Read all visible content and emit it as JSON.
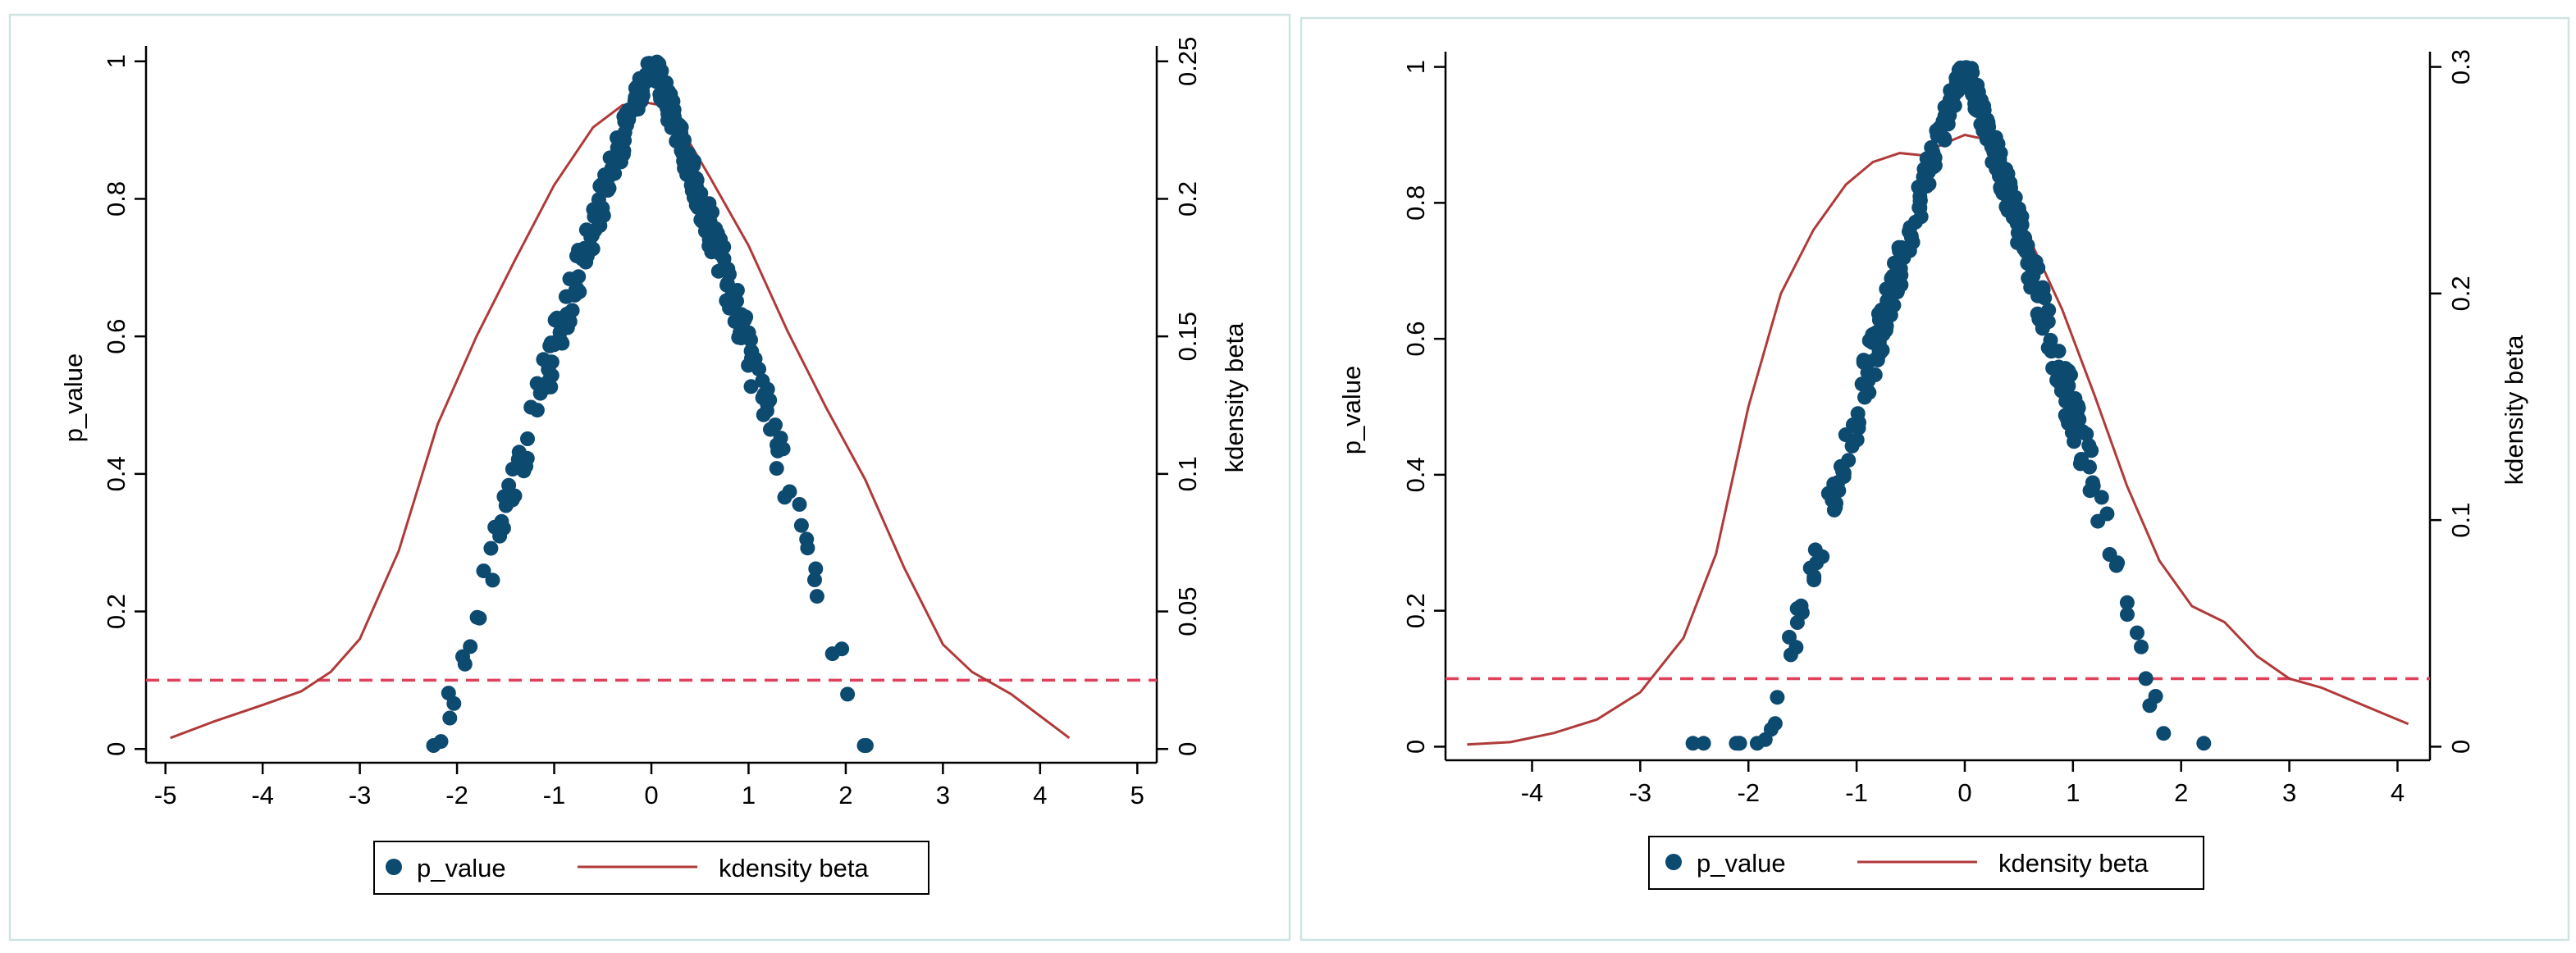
{
  "colors": {
    "points": "#0d4a70",
    "density": "#b03a3a",
    "refline": "#e0405a"
  },
  "chart_data": [
    {
      "type": "scatter",
      "title": "",
      "xlabel": "",
      "ylabel": "p_value",
      "y2label": "kdensity beta",
      "xlim": [
        -5.2,
        5.2
      ],
      "ylim": [
        -0.02,
        1.02
      ],
      "y2lim": [
        -0.005,
        0.255
      ],
      "xticks": [
        "-5",
        "-4",
        "-3",
        "-2",
        "-1",
        "0",
        "1",
        "2",
        "3",
        "4",
        "5"
      ],
      "yticks": [
        "0",
        "0.2",
        "0.4",
        "0.6",
        "0.8",
        "1"
      ],
      "y2ticks": [
        "0",
        "0.05",
        "0.1",
        "0.15",
        "0.2",
        "0.25"
      ],
      "refline_y": 0.1,
      "legend": [
        "p_value",
        "kdensity beta"
      ],
      "sample": {
        "n": 360,
        "seed": 11,
        "left_scale": 2.2,
        "right_scale": 2.2
      },
      "density_series": {
        "x": [
          -4.95,
          -4.5,
          -4.0,
          -3.6,
          -3.3,
          -3.0,
          -2.6,
          -2.2,
          -1.8,
          -1.4,
          -1.0,
          -0.6,
          -0.3,
          -0.05,
          0.1,
          0.3,
          0.6,
          1.0,
          1.4,
          1.8,
          2.2,
          2.6,
          3.0,
          3.3,
          3.7,
          4.0,
          4.3
        ],
        "y": [
          0.004,
          0.01,
          0.016,
          0.021,
          0.028,
          0.04,
          0.072,
          0.118,
          0.15,
          0.178,
          0.205,
          0.226,
          0.234,
          0.235,
          0.234,
          0.226,
          0.208,
          0.183,
          0.152,
          0.124,
          0.098,
          0.066,
          0.038,
          0.028,
          0.02,
          0.012,
          0.004
        ]
      }
    },
    {
      "type": "scatter",
      "title": "",
      "xlabel": "",
      "ylabel": "p_value",
      "y2label": "kdensity beta",
      "xlim": [
        -4.8,
        4.3
      ],
      "ylim": [
        -0.02,
        1.02
      ],
      "y2lim": [
        -0.006,
        0.306
      ],
      "xticks": [
        "-4",
        "-3",
        "-2",
        "-1",
        "0",
        "1",
        "2",
        "3",
        "4"
      ],
      "yticks": [
        "0",
        "0.2",
        "0.4",
        "0.6",
        "0.8",
        "1"
      ],
      "y2ticks": [
        "0",
        "0.1",
        "0.2",
        "0.3"
      ],
      "refline_y": 0.1,
      "legend": [
        "p_value",
        "kdensity beta"
      ],
      "sample": {
        "n": 360,
        "seed": 23,
        "left_scale": 1.85,
        "right_scale": 1.85
      },
      "density_series": {
        "x": [
          -4.6,
          -4.2,
          -3.8,
          -3.4,
          -3.0,
          -2.6,
          -2.3,
          -2.0,
          -1.7,
          -1.4,
          -1.1,
          -0.85,
          -0.6,
          -0.4,
          -0.2,
          0.0,
          0.2,
          0.4,
          0.6,
          0.9,
          1.2,
          1.5,
          1.8,
          2.1,
          2.4,
          2.7,
          3.0,
          3.3,
          3.6,
          4.1
        ],
        "y": [
          0.001,
          0.002,
          0.006,
          0.012,
          0.024,
          0.048,
          0.085,
          0.15,
          0.2,
          0.228,
          0.248,
          0.258,
          0.262,
          0.261,
          0.266,
          0.27,
          0.268,
          0.248,
          0.224,
          0.193,
          0.155,
          0.115,
          0.082,
          0.062,
          0.055,
          0.04,
          0.03,
          0.026,
          0.02,
          0.01
        ]
      }
    }
  ]
}
